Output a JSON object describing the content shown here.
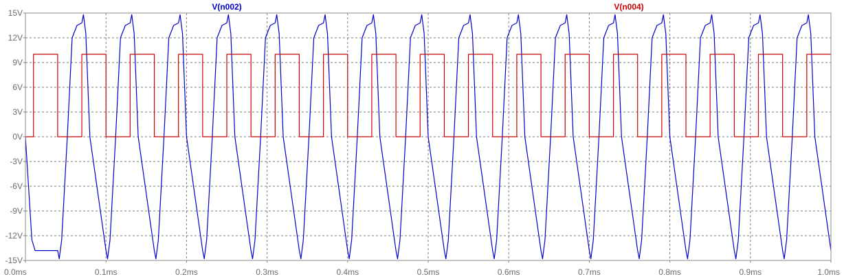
{
  "chart_data": {
    "type": "line",
    "title": "",
    "xlabel": "",
    "ylabel": "",
    "x_unit": "ms",
    "y_unit": "V",
    "xlim": [
      0.0,
      1.0
    ],
    "ylim": [
      -15,
      15
    ],
    "grid": true,
    "x_ticks": [
      "0.0ms",
      "0.1ms",
      "0.2ms",
      "0.3ms",
      "0.4ms",
      "0.5ms",
      "0.6ms",
      "0.7ms",
      "0.8ms",
      "0.9ms",
      "1.0ms"
    ],
    "y_ticks": [
      "15V",
      "12V",
      "9V",
      "6V",
      "3V",
      "0V",
      "-3V",
      "-6V",
      "-9V",
      "-12V",
      "-15V"
    ],
    "legend_entries": [
      "V(n002)",
      "V(n004)"
    ],
    "series": [
      {
        "name": "V(n002)",
        "color": "#0000cc",
        "x": [
          0.0,
          0.008,
          0.012,
          0.02,
          0.035,
          0.04,
          0.042,
          0.045,
          0.052,
          0.058,
          0.064,
          0.07,
          0.072,
          0.075,
          0.08,
          0.1,
          0.102,
          0.105,
          0.112,
          0.118,
          0.124,
          0.13,
          0.132,
          0.135,
          0.14,
          0.16,
          0.162,
          0.165,
          0.172,
          0.178,
          0.184,
          0.19,
          0.192,
          0.195,
          0.2,
          0.22,
          0.222,
          0.225,
          0.232,
          0.238,
          0.244,
          0.25,
          0.252,
          0.255,
          0.26,
          0.28,
          0.282,
          0.285,
          0.292,
          0.298,
          0.304,
          0.31,
          0.312,
          0.315,
          0.32,
          0.34,
          0.342,
          0.345,
          0.352,
          0.358,
          0.364,
          0.37,
          0.372,
          0.375,
          0.38,
          0.4,
          0.402,
          0.405,
          0.412,
          0.418,
          0.424,
          0.43,
          0.432,
          0.435,
          0.44,
          0.46,
          0.462,
          0.465,
          0.472,
          0.478,
          0.484,
          0.49,
          0.492,
          0.495,
          0.5,
          0.52,
          0.522,
          0.525,
          0.532,
          0.538,
          0.544,
          0.55,
          0.552,
          0.555,
          0.56,
          0.58,
          0.582,
          0.585,
          0.592,
          0.598,
          0.604,
          0.61,
          0.612,
          0.615,
          0.62,
          0.64,
          0.642,
          0.645,
          0.652,
          0.658,
          0.664,
          0.67,
          0.672,
          0.675,
          0.68,
          0.7,
          0.702,
          0.705,
          0.712,
          0.718,
          0.724,
          0.73,
          0.732,
          0.735,
          0.74,
          0.76,
          0.762,
          0.765,
          0.772,
          0.778,
          0.784,
          0.79,
          0.792,
          0.795,
          0.8,
          0.82,
          0.822,
          0.825,
          0.832,
          0.838,
          0.844,
          0.85,
          0.852,
          0.855,
          0.86,
          0.88,
          0.882,
          0.885,
          0.892,
          0.898,
          0.904,
          0.91,
          0.912,
          0.915,
          0.92,
          0.94,
          0.942,
          0.945,
          0.952,
          0.958,
          0.964,
          0.97,
          0.972,
          0.975,
          0.98,
          1.0
        ],
        "y": [
          0,
          -12.5,
          -13.8,
          -13.8,
          -13.8,
          -13.8,
          -14.8,
          -12.5,
          0,
          12,
          13.5,
          13.8,
          14.8,
          12.5,
          0,
          -13.8,
          -14.8,
          -12.5,
          0,
          12,
          13.5,
          13.8,
          14.8,
          12.5,
          0,
          -13.8,
          -14.8,
          -12.5,
          0,
          12,
          13.5,
          13.8,
          14.8,
          12.5,
          0,
          -13.8,
          -14.8,
          -12.5,
          0,
          12,
          13.5,
          13.8,
          14.8,
          12.5,
          0,
          -13.8,
          -14.8,
          -12.5,
          0,
          12,
          13.5,
          13.8,
          14.8,
          12.5,
          0,
          -13.8,
          -14.8,
          -12.5,
          0,
          12,
          13.5,
          13.8,
          14.8,
          12.5,
          0,
          -13.8,
          -14.8,
          -12.5,
          0,
          12,
          13.5,
          13.8,
          14.8,
          12.5,
          0,
          -13.8,
          -14.8,
          -12.5,
          0,
          12,
          13.5,
          13.8,
          14.8,
          12.5,
          0,
          -13.8,
          -14.8,
          -12.5,
          0,
          12,
          13.5,
          13.8,
          14.8,
          12.5,
          0,
          -13.8,
          -14.8,
          -12.5,
          0,
          12,
          13.5,
          13.8,
          14.8,
          12.5,
          0,
          -13.8,
          -14.8,
          -12.5,
          0,
          12,
          13.5,
          13.8,
          14.8,
          12.5,
          0,
          -13.8,
          -14.8,
          -12.5,
          0,
          12,
          13.5,
          13.8,
          14.8,
          12.5,
          0,
          -13.8,
          -14.8,
          -12.5,
          0,
          12,
          13.5,
          13.8,
          14.8,
          12.5,
          0,
          -13.8,
          -14.8,
          -12.5,
          0,
          12,
          13.5,
          13.8,
          14.8,
          12.5,
          0,
          -13.8,
          -14.8,
          -12.5,
          0,
          12,
          13.5,
          13.8,
          14.8,
          12.5,
          0,
          -13.8,
          -14.8,
          -12.5,
          0,
          12,
          13.5,
          13.8,
          14.8,
          12.5,
          0,
          -13.8
        ]
      },
      {
        "name": "V(n004)",
        "color": "#cc0000",
        "x": [
          0.0,
          0.01,
          0.01,
          0.04,
          0.04,
          0.07,
          0.07,
          0.1,
          0.1,
          0.13,
          0.13,
          0.16,
          0.16,
          0.19,
          0.19,
          0.22,
          0.22,
          0.25,
          0.25,
          0.28,
          0.28,
          0.31,
          0.31,
          0.34,
          0.34,
          0.37,
          0.37,
          0.4,
          0.4,
          0.43,
          0.43,
          0.46,
          0.46,
          0.49,
          0.49,
          0.52,
          0.52,
          0.55,
          0.55,
          0.58,
          0.58,
          0.61,
          0.61,
          0.64,
          0.64,
          0.67,
          0.67,
          0.7,
          0.7,
          0.73,
          0.73,
          0.76,
          0.76,
          0.79,
          0.79,
          0.82,
          0.82,
          0.85,
          0.85,
          0.88,
          0.88,
          0.91,
          0.91,
          0.94,
          0.94,
          0.97,
          0.97,
          1.0
        ],
        "y": [
          0,
          0,
          10,
          10,
          0,
          0,
          10,
          10,
          0,
          0,
          10,
          10,
          0,
          0,
          10,
          10,
          0,
          0,
          10,
          10,
          0,
          0,
          10,
          10,
          0,
          0,
          10,
          10,
          0,
          0,
          10,
          10,
          0,
          0,
          10,
          10,
          0,
          0,
          10,
          10,
          0,
          0,
          10,
          10,
          0,
          0,
          10,
          10,
          0,
          0,
          10,
          10,
          0,
          0,
          10,
          10,
          0,
          0,
          10,
          10,
          0,
          0,
          10,
          10,
          0,
          0,
          10,
          10
        ]
      }
    ]
  }
}
